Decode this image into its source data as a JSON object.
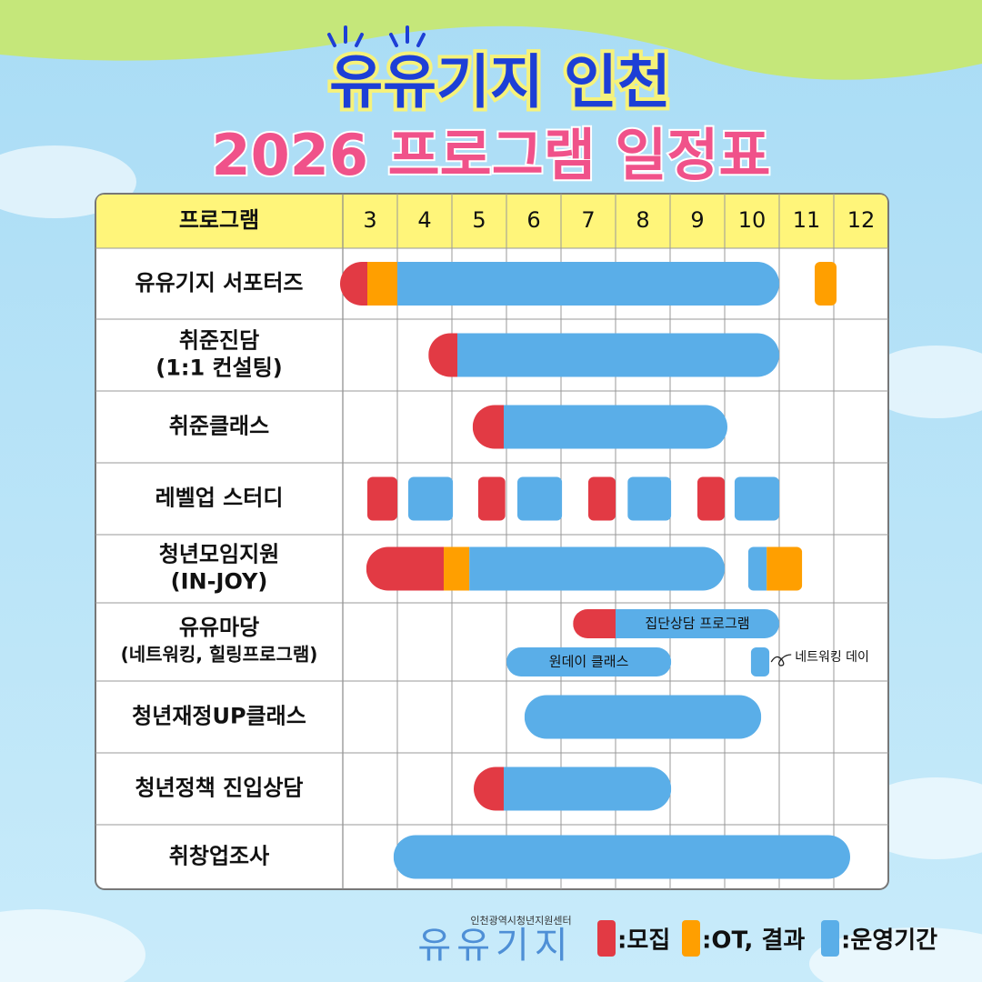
{
  "title": {
    "line1": "유유기지 인천",
    "line2": "2026 프로그램 일정표"
  },
  "table": {
    "header": "프로그램",
    "months": [
      3,
      4,
      5,
      6,
      7,
      8,
      9,
      10,
      11,
      12
    ],
    "rows": [
      {
        "name": [
          "유유기지 서포터즈"
        ],
        "lanes": [
          [
            {
              "segments": [
                {
                  "start": 2.95,
                  "end": 3.45,
                  "color": "#e23a44"
                },
                {
                  "start": 3.45,
                  "end": 4.0,
                  "color": "#ff9f00"
                },
                {
                  "start": 4.0,
                  "end": 11.0,
                  "color": "#5aaee8"
                }
              ]
            },
            {
              "segments": [
                {
                  "start": 11.65,
                  "end": 12.05,
                  "color": "#ff9f00"
                }
              ]
            }
          ]
        ]
      },
      {
        "name": [
          "취준진담",
          "(1:1 컨설팅)"
        ],
        "lanes": [
          [
            {
              "segments": [
                {
                  "start": 4.57,
                  "end": 5.1,
                  "color": "#e23a44"
                },
                {
                  "start": 5.1,
                  "end": 11.0,
                  "color": "#5aaee8"
                }
              ]
            }
          ]
        ]
      },
      {
        "name": [
          "취준클래스"
        ],
        "lanes": [
          [
            {
              "segments": [
                {
                  "start": 5.38,
                  "end": 5.95,
                  "color": "#e23a44"
                },
                {
                  "start": 5.95,
                  "end": 10.05,
                  "color": "#5aaee8"
                }
              ]
            }
          ]
        ]
      },
      {
        "name": [
          "레벨업 스터디"
        ],
        "lanes": [
          [
            {
              "segments": [
                {
                  "start": 3.45,
                  "end": 4.0,
                  "color": "#e23a44"
                }
              ]
            },
            {
              "segments": [
                {
                  "start": 4.2,
                  "end": 5.02,
                  "color": "#5aaee8"
                }
              ]
            },
            {
              "segments": [
                {
                  "start": 5.48,
                  "end": 5.98,
                  "color": "#e23a44"
                }
              ]
            },
            {
              "segments": [
                {
                  "start": 6.2,
                  "end": 7.02,
                  "color": "#5aaee8"
                }
              ]
            },
            {
              "segments": [
                {
                  "start": 7.5,
                  "end": 8.0,
                  "color": "#e23a44"
                }
              ]
            },
            {
              "segments": [
                {
                  "start": 8.22,
                  "end": 9.02,
                  "color": "#5aaee8"
                }
              ]
            },
            {
              "segments": [
                {
                  "start": 9.5,
                  "end": 10.0,
                  "color": "#e23a44"
                }
              ]
            },
            {
              "segments": [
                {
                  "start": 10.18,
                  "end": 11.0,
                  "color": "#5aaee8"
                }
              ]
            }
          ]
        ]
      },
      {
        "name": [
          "청년모임지원",
          "(IN-JOY)"
        ],
        "lanes": [
          [
            {
              "segments": [
                {
                  "start": 3.43,
                  "end": 4.85,
                  "color": "#e23a44"
                },
                {
                  "start": 4.85,
                  "end": 5.32,
                  "color": "#ff9f00"
                },
                {
                  "start": 5.32,
                  "end": 10.0,
                  "color": "#5aaee8"
                }
              ]
            },
            {
              "segments": [
                {
                  "start": 10.43,
                  "end": 10.77,
                  "color": "#5aaee8"
                },
                {
                  "start": 10.77,
                  "end": 11.42,
                  "color": "#ff9f00"
                }
              ]
            }
          ]
        ]
      },
      {
        "name": [
          "유유마당",
          "(네트워킹, 힐링프로그램)"
        ],
        "lanes": [
          [
            {
              "segments": [
                {
                  "start": 7.22,
                  "end": 8.0,
                  "color": "#e23a44"
                },
                {
                  "start": 8.0,
                  "end": 11.0,
                  "color": "#5aaee8"
                }
              ],
              "label": "집단상담 프로그램"
            }
          ],
          [
            {
              "segments": [
                {
                  "start": 6.0,
                  "end": 9.02,
                  "color": "#5aaee8"
                }
              ],
              "label": "원데이 클래스"
            },
            {
              "segments": [
                {
                  "start": 10.48,
                  "end": 10.82,
                  "color": "#5aaee8"
                }
              ],
              "label": "네트워킹 데이"
            }
          ]
        ]
      },
      {
        "name": [
          "청년재정UP클래스"
        ],
        "lanes": [
          [
            {
              "segments": [
                {
                  "start": 6.33,
                  "end": 10.67,
                  "color": "#5aaee8"
                }
              ]
            }
          ]
        ]
      },
      {
        "name": [
          "청년정책 진입상담"
        ],
        "lanes": [
          [
            {
              "segments": [
                {
                  "start": 5.4,
                  "end": 5.95,
                  "color": "#e23a44"
                },
                {
                  "start": 5.95,
                  "end": 9.02,
                  "color": "#5aaee8"
                }
              ]
            }
          ]
        ]
      },
      {
        "name": [
          "취창업조사"
        ],
        "lanes": [
          [
            {
              "segments": [
                {
                  "start": 3.93,
                  "end": 12.3,
                  "color": "#5aaee8"
                }
              ]
            }
          ]
        ]
      }
    ]
  },
  "legend": [
    {
      "label": ":모집",
      "color": "#e23a44"
    },
    {
      "label": ":OT, 결과",
      "color": "#ff9f00"
    },
    {
      "label": ":운영기간",
      "color": "#5aaee8"
    }
  ],
  "footer": {
    "org": "인천광역시청년지원센터",
    "logo": "유유기지"
  }
}
